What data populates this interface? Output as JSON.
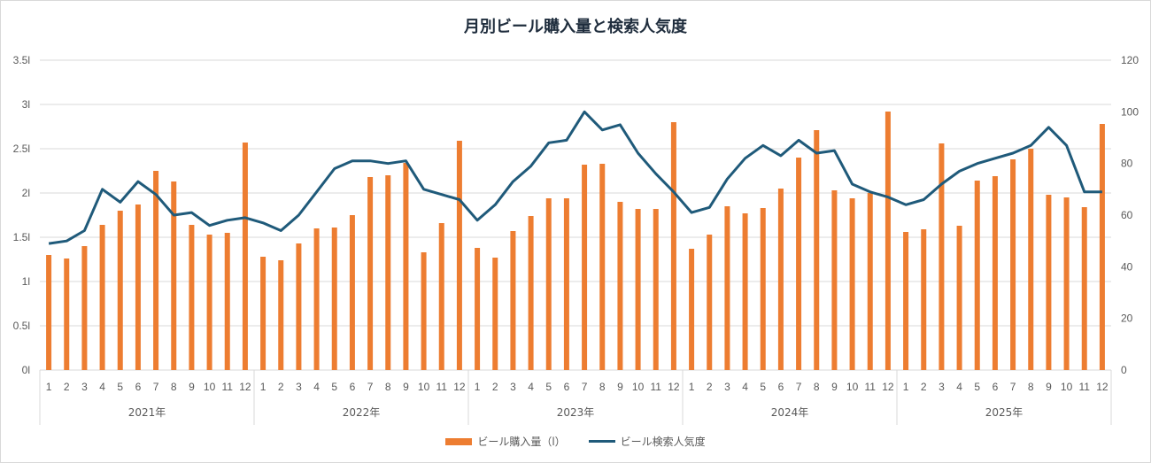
{
  "chart_data": {
    "type": "bar+line",
    "title": "月別ビール購入量と検索人気度",
    "years": [
      "2021年",
      "2022年",
      "2023年",
      "2024年",
      "2025年"
    ],
    "months": [
      "1",
      "2",
      "3",
      "4",
      "5",
      "6",
      "7",
      "8",
      "9",
      "10",
      "11",
      "12"
    ],
    "y_left": {
      "ticks": [
        "0l",
        "0.5l",
        "1l",
        "1.5l",
        "2l",
        "2.5l",
        "3l",
        "3.5l"
      ],
      "range": [
        0,
        3.5
      ]
    },
    "y_right": {
      "ticks": [
        "0",
        "20",
        "40",
        "60",
        "80",
        "100",
        "120"
      ],
      "range": [
        0,
        120
      ]
    },
    "series": [
      {
        "name": "ビール購入量（l）",
        "kind": "bar",
        "color": "#ED7D31",
        "values": [
          1.3,
          1.26,
          1.4,
          1.64,
          1.8,
          1.87,
          2.25,
          2.13,
          1.64,
          1.53,
          1.55,
          2.57,
          1.28,
          1.24,
          1.43,
          1.6,
          1.61,
          1.75,
          2.18,
          2.2,
          2.34,
          1.33,
          1.66,
          2.59,
          1.38,
          1.27,
          1.57,
          1.74,
          1.94,
          1.94,
          2.32,
          2.33,
          1.9,
          1.82,
          1.82,
          2.8,
          1.37,
          1.53,
          1.85,
          1.77,
          1.83,
          2.05,
          2.4,
          2.71,
          2.03,
          1.94,
          2.0,
          2.92,
          1.56,
          1.59,
          2.56,
          1.63,
          2.14,
          2.19,
          2.38,
          2.5,
          1.98,
          1.95,
          1.84,
          2.78
        ]
      },
      {
        "name": "ビール検索人気度",
        "kind": "line",
        "color": "#1F5A7A",
        "values": [
          49,
          50,
          54,
          70,
          65,
          73,
          68,
          60,
          61,
          56,
          58,
          59,
          57,
          54,
          60,
          69,
          78,
          81,
          81,
          80,
          81,
          70,
          68,
          66,
          58,
          64,
          73,
          79,
          88,
          89,
          100,
          93,
          95,
          84,
          76,
          69,
          61,
          63,
          74,
          82,
          87,
          83,
          89,
          84,
          85,
          72,
          69,
          67,
          64,
          66,
          72,
          77,
          80,
          82,
          84,
          87,
          94,
          87,
          69,
          69
        ]
      }
    ],
    "legend_position": "bottom",
    "grid": true
  }
}
